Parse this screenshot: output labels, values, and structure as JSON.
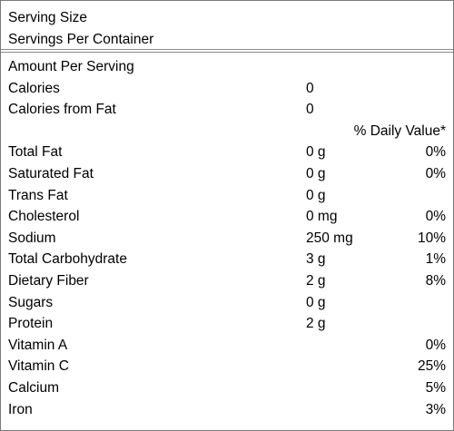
{
  "header": {
    "serving_size_label": "Serving Size",
    "servings_per_container_label": "Servings Per Container"
  },
  "amount_per_serving_label": "Amount Per Serving",
  "calories": {
    "label": "Calories",
    "value": "0"
  },
  "calories_from_fat": {
    "label": "Calories from Fat",
    "value": "0"
  },
  "daily_value_header": "% Daily Value*",
  "nutrients": [
    {
      "name": "Total Fat",
      "amount": "0 g",
      "dv": "0%"
    },
    {
      "name": "Saturated Fat",
      "amount": "0 g",
      "dv": "0%"
    },
    {
      "name": "Trans Fat",
      "amount": "0 g",
      "dv": ""
    },
    {
      "name": "Cholesterol",
      "amount": "0 mg",
      "dv": "0%"
    },
    {
      "name": "Sodium",
      "amount": "250 mg",
      "dv": "10%"
    },
    {
      "name": "Total Carbohydrate",
      "amount": "3 g",
      "dv": "1%"
    },
    {
      "name": "Dietary Fiber",
      "amount": "2 g",
      "dv": "8%"
    },
    {
      "name": "Sugars",
      "amount": "0 g",
      "dv": ""
    },
    {
      "name": "Protein",
      "amount": "2 g",
      "dv": ""
    },
    {
      "name": "Vitamin A",
      "amount": "",
      "dv": "0%"
    },
    {
      "name": "Vitamin C",
      "amount": "",
      "dv": "25%"
    },
    {
      "name": "Calcium",
      "amount": "",
      "dv": "5%"
    },
    {
      "name": "Iron",
      "amount": "",
      "dv": "3%"
    }
  ]
}
